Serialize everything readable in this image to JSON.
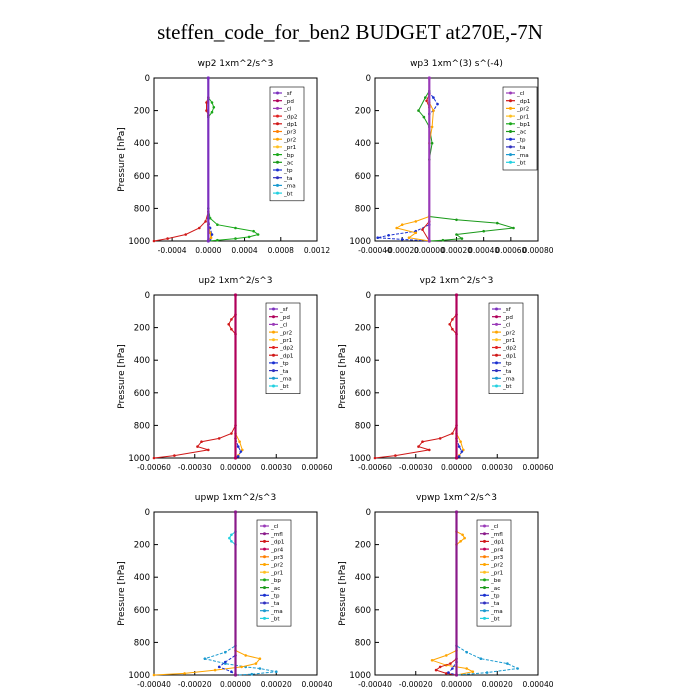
{
  "title": "steffen_code_for_ben2  BUDGET at270E,-7N",
  "colors": {
    "sf": "#7b2fbe",
    "pd": "#b0005a",
    "cl": "#9a3ab8",
    "dp2": "#e02020",
    "dp1": "#d01818",
    "pr3": "#ff7f00",
    "pr2": "#ffa500",
    "pr1": "#ffc020",
    "bp": "#1aa81a",
    "ac": "#1a9a1a",
    "tp": "#1a2fd0",
    "ta": "#3030c0",
    "ma": "#1a9ad0",
    "bt": "#20d0e0",
    "mf": "#8a1a8a",
    "pr4": "#c0005a",
    "be": "#1aa81a"
  },
  "chart_data": [
    {
      "type": "line",
      "title": "wp2   1xm^2/s^3",
      "ylabel": "Pressure  [hPa]",
      "ylim": [
        1000,
        0
      ],
      "yticks": [
        "0",
        "200",
        "400",
        "600",
        "800",
        "1000"
      ],
      "xlim": [
        -0.0006,
        0.0012
      ],
      "xticks": [
        "-0.0004",
        "0.0000",
        "0.0004",
        "0.0008",
        "0.0012"
      ],
      "xtick_values": [
        -0.0004,
        0,
        0.0004,
        0.0008,
        0.0012
      ],
      "legend": [
        "_sf",
        "_pd",
        "_cl",
        "_dp2",
        "_dp1",
        "_pr3",
        "_pr2",
        "_pr1",
        "_bp",
        "_ac",
        "_tp",
        "_ta",
        "_ma",
        "_bt"
      ],
      "series": [
        {
          "key": "bp",
          "x": [
            0,
            0,
            4e-05,
            6e-05,
            4e-05,
            0,
            0,
            2e-05,
            0.0001,
            0.0003,
            0.0005,
            0.00055,
            0.00045,
            0.0003,
            0.0001,
            0
          ],
          "y": [
            0,
            120,
            150,
            180,
            210,
            240,
            800,
            860,
            900,
            920,
            940,
            960,
            975,
            985,
            995,
            1000
          ]
        },
        {
          "key": "dp1",
          "x": [
            0,
            0,
            -2e-05,
            -2e-05,
            0,
            0,
            -3e-05,
            -0.0001,
            -0.00025,
            -0.00045,
            -0.0006
          ],
          "y": [
            0,
            120,
            150,
            200,
            230,
            820,
            880,
            920,
            960,
            985,
            1000
          ]
        },
        {
          "key": "tp",
          "x": [
            0,
            0,
            2e-05,
            4e-05,
            2e-05,
            0
          ],
          "y": [
            0,
            860,
            920,
            960,
            990,
            1000
          ]
        },
        {
          "key": "pr2",
          "x": [
            0,
            0,
            2e-05,
            3e-05,
            0
          ],
          "y": [
            0,
            900,
            950,
            980,
            1000
          ]
        },
        {
          "key": "sf",
          "x": [
            0,
            0
          ],
          "y": [
            0,
            1000
          ]
        }
      ]
    },
    {
      "type": "line",
      "title": "wp3   1xm^(3) s^(-4)",
      "ylabel": "",
      "ylim": [
        1000,
        0
      ],
      "yticks": [
        "0",
        "200",
        "400",
        "600",
        "800",
        "1000"
      ],
      "xlim": [
        -0.0004,
        0.0008
      ],
      "xticks": [
        "-0.00040",
        "-0.00020",
        "0.00000",
        "0.00020",
        "0.00040",
        "0.00060",
        "0.00080"
      ],
      "xtick_values": [
        -0.0004,
        -0.0002,
        0,
        0.0002,
        0.0004,
        0.0006,
        0.0008
      ],
      "legend": [
        "_cl",
        "_dp1",
        "_pr2",
        "_pr1",
        "_bp1",
        "_ac",
        "_tp",
        "_ta",
        "_ma",
        "_bt"
      ],
      "series": [
        {
          "key": "ac",
          "x": [
            0,
            0,
            -3e-05,
            -8e-05,
            -4e-05,
            0,
            2e-05,
            0,
            0,
            0.0002,
            0.0005,
            0.00062,
            0.0004,
            0.0002,
            0.00024,
            0.0001,
            0
          ],
          "y": [
            0,
            80,
            120,
            200,
            240,
            300,
            400,
            500,
            850,
            870,
            890,
            920,
            940,
            960,
            985,
            995,
            1000
          ]
        },
        {
          "key": "tp",
          "x": [
            0,
            0,
            3e-05,
            6e-05,
            3e-05,
            0,
            0,
            -0.0001,
            -0.0003,
            -0.00038,
            -0.0002,
            0
          ],
          "y": [
            0,
            90,
            120,
            160,
            200,
            220,
            900,
            940,
            965,
            980,
            990,
            1000
          ]
        },
        {
          "key": "pr2",
          "x": [
            0,
            0,
            3e-05,
            2e-05,
            0,
            0,
            -0.0001,
            -0.0002,
            -0.00024,
            -0.0001,
            -0.00015,
            0
          ],
          "y": [
            0,
            150,
            200,
            300,
            400,
            850,
            880,
            900,
            920,
            950,
            980,
            1000
          ]
        },
        {
          "key": "dp1",
          "x": [
            0,
            0,
            -2e-05,
            0,
            0,
            -5e-05,
            0
          ],
          "y": [
            0,
            100,
            140,
            180,
            880,
            930,
            1000
          ]
        },
        {
          "key": "cl",
          "x": [
            0,
            0
          ],
          "y": [
            0,
            1000
          ]
        }
      ]
    },
    {
      "type": "line",
      "title": "up2   1xm^2/s^3",
      "ylabel": "Pressure  [hPa]",
      "ylim": [
        1000,
        0
      ],
      "yticks": [
        "0",
        "200",
        "400",
        "600",
        "800",
        "1000"
      ],
      "xlim": [
        -0.0006,
        0.0006
      ],
      "xticks": [
        "-0.00060",
        "-0.00030",
        "0.00000",
        "0.00030",
        "0.00060"
      ],
      "xtick_values": [
        -0.0006,
        -0.0003,
        0,
        0.0003,
        0.0006
      ],
      "legend": [
        "_sf",
        "_pd",
        "_cl",
        "_pr2",
        "_pr1",
        "_dp2",
        "_dp1",
        "_tp",
        "_ta",
        "_ma",
        "_bt"
      ],
      "series": [
        {
          "key": "dp1",
          "x": [
            0,
            0,
            -3e-05,
            -5e-05,
            -3e-05,
            0,
            0,
            -3e-05,
            -0.00012,
            -0.00025,
            -0.00028,
            -0.0002,
            -0.00045,
            -0.0006
          ],
          "y": [
            0,
            120,
            150,
            180,
            210,
            240,
            800,
            850,
            880,
            900,
            930,
            950,
            985,
            1000
          ]
        },
        {
          "key": "pr2",
          "x": [
            0,
            0,
            3e-05,
            5e-05,
            2e-05,
            0
          ],
          "y": [
            0,
            850,
            900,
            950,
            985,
            1000
          ]
        },
        {
          "key": "tp",
          "x": [
            0,
            0,
            2e-05,
            4e-05,
            2e-05,
            0
          ],
          "y": [
            0,
            880,
            930,
            960,
            990,
            1000
          ]
        },
        {
          "key": "pd",
          "x": [
            0,
            0
          ],
          "y": [
            0,
            1000
          ]
        }
      ]
    },
    {
      "type": "line",
      "title": "vp2   1xm^2/s^3",
      "ylabel": "Pressure  [hPa]",
      "ylim": [
        1000,
        0
      ],
      "yticks": [
        "0",
        "200",
        "400",
        "600",
        "800",
        "1000"
      ],
      "xlim": [
        -0.0006,
        0.0006
      ],
      "xticks": [
        "-0.00060",
        "-0.00030",
        "0.00000",
        "0.00030",
        "0.00060"
      ],
      "xtick_values": [
        -0.0006,
        -0.0003,
        0,
        0.0003,
        0.0006
      ],
      "legend": [
        "_sf",
        "_pd",
        "_cl",
        "_pr2",
        "_pr1",
        "_dp2",
        "_dp1",
        "_tp",
        "_ta",
        "_ma",
        "_bt"
      ],
      "series": [
        {
          "key": "dp1",
          "x": [
            0,
            0,
            -3e-05,
            -5e-05,
            -3e-05,
            0,
            0,
            -3e-05,
            -0.00012,
            -0.00025,
            -0.00028,
            -0.0002,
            -0.00045,
            -0.0006
          ],
          "y": [
            0,
            120,
            150,
            180,
            210,
            240,
            800,
            850,
            880,
            900,
            930,
            950,
            985,
            1000
          ]
        },
        {
          "key": "pr2",
          "x": [
            0,
            0,
            3e-05,
            5e-05,
            2e-05,
            0
          ],
          "y": [
            0,
            850,
            900,
            950,
            985,
            1000
          ]
        },
        {
          "key": "tp",
          "x": [
            0,
            0,
            2e-05,
            4e-05,
            2e-05,
            0
          ],
          "y": [
            0,
            880,
            930,
            960,
            990,
            1000
          ]
        },
        {
          "key": "pd",
          "x": [
            0,
            0
          ],
          "y": [
            0,
            1000
          ]
        }
      ]
    },
    {
      "type": "line",
      "title": "upwp   1xm^2/s^3",
      "ylabel": "Pressure  [hPa]",
      "ylim": [
        1000,
        0
      ],
      "yticks": [
        "0",
        "200",
        "400",
        "600",
        "800",
        "1000"
      ],
      "xlim": [
        -0.0004,
        0.0004
      ],
      "xticks": [
        "-0.00040",
        "-0.00020",
        "0.00000",
        "0.00020",
        "0.00040"
      ],
      "xtick_values": [
        -0.0004,
        -0.0002,
        0,
        0.0002,
        0.0004
      ],
      "legend": [
        "_cl",
        "_mfl",
        "_dp1",
        "_pr4",
        "_pr3",
        "_pr2",
        "_pr1",
        "_bp",
        "_ac",
        "_tp",
        "_ta",
        "_ma",
        "_bt"
      ],
      "series": [
        {
          "key": "bt",
          "x": [
            0,
            0,
            -2e-05,
            -3e-05,
            -2e-05,
            0,
            0
          ],
          "y": [
            0,
            120,
            140,
            160,
            180,
            200,
            1000
          ]
        },
        {
          "key": "ma",
          "x": [
            0,
            0,
            -5e-05,
            -0.00015,
            -5e-05,
            5e-05,
            0.00012,
            0.0002,
            8e-05,
            0
          ],
          "y": [
            0,
            820,
            860,
            900,
            930,
            950,
            960,
            980,
            995,
            1000
          ]
        },
        {
          "key": "pr2",
          "x": [
            0,
            0,
            5e-05,
            0.00012,
            0.0001,
            3e-05,
            -0.0001,
            -0.00025,
            -0.0004
          ],
          "y": [
            0,
            850,
            880,
            900,
            930,
            950,
            970,
            990,
            1000
          ]
        },
        {
          "key": "tp",
          "x": [
            0,
            0,
            -5e-05,
            -8e-05,
            -2e-05,
            0
          ],
          "y": [
            0,
            880,
            920,
            950,
            980,
            1000
          ]
        },
        {
          "key": "mf",
          "x": [
            0,
            0
          ],
          "y": [
            0,
            1000
          ]
        }
      ]
    },
    {
      "type": "line",
      "title": "vpwp   1xm^2/s^3",
      "ylabel": "Pressure  [hPa]",
      "ylim": [
        1000,
        0
      ],
      "yticks": [
        "0",
        "200",
        "400",
        "600",
        "800",
        "1000"
      ],
      "xlim": [
        -0.0004,
        0.0004
      ],
      "xticks": [
        "-0.00040",
        "-0.00020",
        "0.00000",
        "0.00020",
        "0.00040"
      ],
      "xtick_values": [
        -0.0004,
        -0.0002,
        0,
        0.0002,
        0.0004
      ],
      "legend": [
        "_cl",
        "_mfl",
        "_dp1",
        "_pr4",
        "_pr3",
        "_pr2",
        "_pr1",
        "_be",
        "_ac",
        "_tp",
        "_ta",
        "_ma",
        "_bt"
      ],
      "series": [
        {
          "key": "pr2",
          "x": [
            0,
            0,
            3e-05,
            4e-05,
            2e-05,
            0,
            0,
            -5e-05,
            -0.00012,
            -5e-05,
            5e-05,
            8e-05,
            0
          ],
          "y": [
            0,
            120,
            140,
            160,
            180,
            200,
            850,
            880,
            910,
            940,
            960,
            980,
            1000
          ]
        },
        {
          "key": "ma",
          "x": [
            0,
            0,
            5e-05,
            0.00012,
            0.00025,
            0.0003,
            0.00015,
            0
          ],
          "y": [
            0,
            820,
            860,
            900,
            930,
            960,
            985,
            1000
          ]
        },
        {
          "key": "dp1",
          "x": [
            0,
            0,
            -3e-05,
            -8e-05,
            -0.0001,
            -5e-05,
            0
          ],
          "y": [
            0,
            900,
            930,
            950,
            970,
            990,
            1000
          ]
        },
        {
          "key": "tp",
          "x": [
            0,
            0,
            -2e-05,
            -4e-05,
            0
          ],
          "y": [
            0,
            920,
            960,
            985,
            1000
          ]
        },
        {
          "key": "mf",
          "x": [
            0,
            0
          ],
          "y": [
            0,
            1000
          ]
        }
      ]
    }
  ]
}
